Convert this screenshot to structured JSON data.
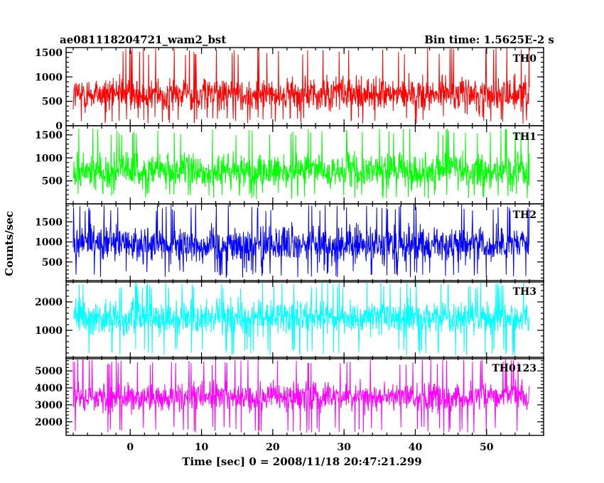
{
  "header": {
    "left_title": "ae081118204721_wam2_bst",
    "right_title": "Bin time: 1.5625E-2 s"
  },
  "chart_data": {
    "type": "line",
    "title": "ae081118204721_wam2_bst",
    "subtitle": "Bin time: 1.5625E-2 s",
    "xlabel": "Time [sec] 0 = 2008/11/18 20:47:21.299",
    "ylabel": "Counts/sec",
    "xlim": [
      -9,
      58
    ],
    "x_data_range": [
      -8,
      56
    ],
    "x_ticks": [
      0,
      10,
      20,
      30,
      40,
      50
    ],
    "x_tick_labels": [
      "0",
      "10",
      "20",
      "30",
      "40",
      "50"
    ],
    "x_minor_step": 2,
    "grid": false,
    "panels": [
      {
        "name": "TH0",
        "color": "#ff0000",
        "ylim": [
          0,
          1600
        ],
        "y_ticks": [
          0,
          500,
          1000,
          1500
        ],
        "y_tick_labels": [
          "0",
          "500",
          "1000",
          "1500"
        ],
        "y_minor_step": 100,
        "mean": 650,
        "spread": 380,
        "min": 40,
        "max": 1600
      },
      {
        "name": "TH1",
        "color": "#00ff00",
        "ylim": [
          0,
          1700
        ],
        "y_ticks": [
          500,
          1000,
          1500
        ],
        "y_tick_labels": [
          "500",
          "1000",
          "1500"
        ],
        "y_minor_step": 100,
        "mean": 720,
        "spread": 400,
        "min": 100,
        "max": 1650
      },
      {
        "name": "TH2",
        "color": "#0000ff",
        "ylim": [
          0,
          1950
        ],
        "y_ticks": [
          500,
          1000,
          1500
        ],
        "y_tick_labels": [
          "500",
          "1000",
          "1500"
        ],
        "y_minor_step": 100,
        "mean": 930,
        "spread": 470,
        "min": 100,
        "max": 1950
      },
      {
        "name": "TH3",
        "color": "#00ffff",
        "ylim": [
          0,
          2750
        ],
        "y_ticks": [
          1000,
          2000
        ],
        "y_tick_labels": [
          "1000",
          "2000"
        ],
        "y_minor_step": 200,
        "mean": 1450,
        "spread": 620,
        "min": 100,
        "max": 2700
      },
      {
        "name": "TH0123",
        "color": "#ff00ff",
        "ylim": [
          1200,
          5800
        ],
        "y_ticks": [
          2000,
          3000,
          4000,
          5000
        ],
        "y_tick_labels": [
          "2000",
          "3000",
          "4000",
          "5000"
        ],
        "y_minor_step": 200,
        "mean": 3450,
        "spread": 900,
        "min": 1350,
        "max": 5700
      }
    ]
  }
}
